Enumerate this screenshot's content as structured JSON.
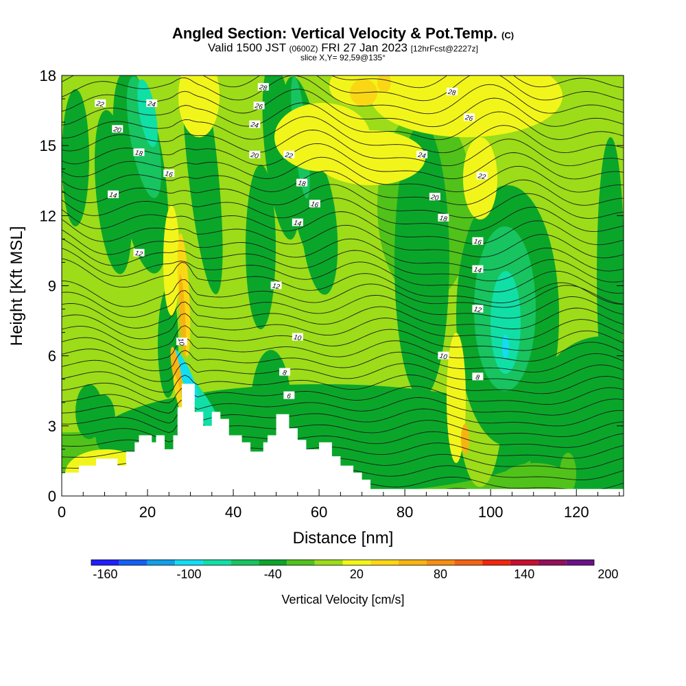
{
  "header": {
    "title": "Angled Section: Vertical Velocity & Pot.Temp.",
    "title_mark": "(C)",
    "valid_pre": "Valid 1500 JST",
    "valid_z": "(0600Z)",
    "valid_date": "FRI 27 Jan 2023",
    "valid_fcst": "[12hrFcst@2227z]",
    "slice": "slice X,Y= 92,59@135°"
  },
  "chart_data": {
    "type": "heatmap",
    "xlabel": "Distance [nm]",
    "ylabel": "Height [Kft MSL]",
    "xlim": [
      0,
      131
    ],
    "ylim": [
      0,
      18
    ],
    "x_ticks": [
      0,
      20,
      40,
      60,
      80,
      100,
      120
    ],
    "y_ticks": [
      0,
      3,
      6,
      9,
      12,
      15,
      18
    ],
    "colorbar": {
      "title": "Vertical Velocity [cm/s]",
      "min": -170,
      "step": 20,
      "colors": [
        "#1f1fff",
        "#1560f5",
        "#109fe8",
        "#12ddf2",
        "#10dfa6",
        "#17c460",
        "#0aa62a",
        "#50c21a",
        "#9cdc19",
        "#f2f51a",
        "#fad715",
        "#f7b411",
        "#f78f12",
        "#f46313",
        "#f0260e",
        "#c80f30",
        "#940f5a",
        "#6a1285"
      ],
      "tick_labels": [
        -160,
        -100,
        -40,
        20,
        80,
        140,
        200
      ]
    },
    "terrain_kft": [
      [
        0,
        1.0
      ],
      [
        4,
        1.0
      ],
      [
        4,
        1.3
      ],
      [
        8,
        1.3
      ],
      [
        8,
        1.6
      ],
      [
        13,
        1.6
      ],
      [
        13,
        1.3
      ],
      [
        15,
        1.3
      ],
      [
        15,
        1.9
      ],
      [
        17,
        1.9
      ],
      [
        17,
        2.3
      ],
      [
        18,
        2.3
      ],
      [
        18,
        2.6
      ],
      [
        21,
        2.6
      ],
      [
        21,
        2.3
      ],
      [
        22,
        2.3
      ],
      [
        22,
        2.6
      ],
      [
        24,
        2.6
      ],
      [
        24,
        2.0
      ],
      [
        26,
        2.0
      ],
      [
        26,
        2.6
      ],
      [
        27,
        2.6
      ],
      [
        27,
        3.8
      ],
      [
        28,
        3.8
      ],
      [
        28,
        4.8
      ],
      [
        31,
        4.8
      ],
      [
        31,
        3.6
      ],
      [
        33,
        3.6
      ],
      [
        33,
        3.0
      ],
      [
        35,
        3.0
      ],
      [
        35,
        3.6
      ],
      [
        37,
        3.6
      ],
      [
        37,
        3.3
      ],
      [
        39,
        3.3
      ],
      [
        39,
        2.6
      ],
      [
        42,
        2.6
      ],
      [
        42,
        2.3
      ],
      [
        44,
        2.3
      ],
      [
        44,
        1.9
      ],
      [
        47,
        1.9
      ],
      [
        47,
        2.3
      ],
      [
        48,
        2.3
      ],
      [
        48,
        2.6
      ],
      [
        50,
        2.6
      ],
      [
        50,
        3.5
      ],
      [
        53,
        3.5
      ],
      [
        53,
        2.9
      ],
      [
        55,
        2.9
      ],
      [
        55,
        2.4
      ],
      [
        57,
        2.4
      ],
      [
        57,
        2.0
      ],
      [
        60,
        2.0
      ],
      [
        60,
        2.3
      ],
      [
        63,
        2.3
      ],
      [
        63,
        1.7
      ],
      [
        65,
        1.7
      ],
      [
        65,
        1.3
      ],
      [
        68,
        1.3
      ],
      [
        68,
        1.0
      ],
      [
        70,
        1.0
      ],
      [
        70,
        0.7
      ],
      [
        72,
        0.7
      ],
      [
        72,
        0.3
      ],
      [
        131,
        0.3
      ]
    ],
    "theta_label_values": [
      6,
      8,
      10,
      12,
      14,
      16,
      18,
      20,
      22,
      24,
      26,
      28
    ],
    "contour_labels": [
      {
        "x": 9,
        "y": 16.8,
        "text": "22"
      },
      {
        "x": 13,
        "y": 15.7,
        "text": "20"
      },
      {
        "x": 18,
        "y": 14.7,
        "text": "18"
      },
      {
        "x": 21,
        "y": 16.8,
        "text": "24"
      },
      {
        "x": 25,
        "y": 13.8,
        "text": "16"
      },
      {
        "x": 12,
        "y": 12.9,
        "text": "14"
      },
      {
        "x": 18,
        "y": 10.4,
        "text": "12"
      },
      {
        "x": 28,
        "y": 6.6,
        "text": "10"
      },
      {
        "x": 47,
        "y": 17.5,
        "text": "28"
      },
      {
        "x": 46,
        "y": 16.7,
        "text": "26"
      },
      {
        "x": 45,
        "y": 15.9,
        "text": "24"
      },
      {
        "x": 45,
        "y": 14.6,
        "text": "20"
      },
      {
        "x": 53,
        "y": 14.6,
        "text": "22"
      },
      {
        "x": 56,
        "y": 13.4,
        "text": "18"
      },
      {
        "x": 59,
        "y": 12.5,
        "text": "16"
      },
      {
        "x": 55,
        "y": 11.7,
        "text": "14"
      },
      {
        "x": 50,
        "y": 9.0,
        "text": "12"
      },
      {
        "x": 55,
        "y": 6.8,
        "text": "10"
      },
      {
        "x": 52,
        "y": 5.3,
        "text": "8"
      },
      {
        "x": 53,
        "y": 4.3,
        "text": "6"
      },
      {
        "x": 91,
        "y": 17.3,
        "text": "28"
      },
      {
        "x": 95,
        "y": 16.2,
        "text": "26"
      },
      {
        "x": 84,
        "y": 14.6,
        "text": "24"
      },
      {
        "x": 98,
        "y": 13.7,
        "text": "22"
      },
      {
        "x": 87,
        "y": 12.8,
        "text": "20"
      },
      {
        "x": 89,
        "y": 11.9,
        "text": "18"
      },
      {
        "x": 97,
        "y": 10.9,
        "text": "16"
      },
      {
        "x": 97,
        "y": 9.7,
        "text": "14"
      },
      {
        "x": 97,
        "y": 8.0,
        "text": "12"
      },
      {
        "x": 89,
        "y": 6.0,
        "text": "10"
      },
      {
        "x": 97,
        "y": 5.1,
        "text": "8"
      }
    ]
  }
}
